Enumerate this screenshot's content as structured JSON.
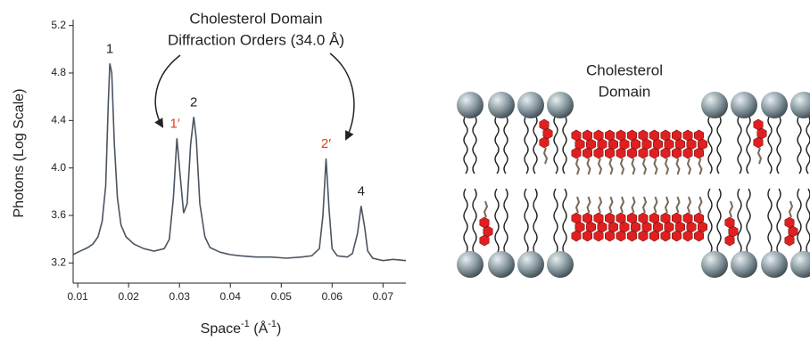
{
  "chart_data": {
    "type": "line",
    "ylabel": "Photons (Log Scale)",
    "xlabel": [
      "Space",
      "-1",
      " (Å",
      "-1",
      ")"
    ],
    "annotation": [
      "Cholesterol Domain",
      "Diffraction Orders (34.0 Å)"
    ],
    "x": [
      0.0091,
      0.01,
      0.011,
      0.012,
      0.013,
      0.014,
      0.0148,
      0.0155,
      0.016,
      0.0163,
      0.0167,
      0.0172,
      0.0178,
      0.0185,
      0.0195,
      0.021,
      0.023,
      0.025,
      0.027,
      0.028,
      0.0288,
      0.0295,
      0.0301,
      0.0308,
      0.0315,
      0.0322,
      0.0328,
      0.0333,
      0.034,
      0.035,
      0.036,
      0.038,
      0.04,
      0.042,
      0.045,
      0.048,
      0.051,
      0.054,
      0.056,
      0.0575,
      0.0582,
      0.0588,
      0.0594,
      0.06,
      0.061,
      0.063,
      0.064,
      0.065,
      0.0657,
      0.0664,
      0.067,
      0.068,
      0.07,
      0.072,
      0.0745
    ],
    "series": [
      {
        "color": "#4a5560",
        "values": [
          3.27,
          3.29,
          3.31,
          3.33,
          3.36,
          3.42,
          3.55,
          3.85,
          4.55,
          4.88,
          4.8,
          4.2,
          3.75,
          3.52,
          3.42,
          3.36,
          3.32,
          3.3,
          3.32,
          3.4,
          3.75,
          4.25,
          3.95,
          3.62,
          3.7,
          4.2,
          4.43,
          4.25,
          3.7,
          3.42,
          3.33,
          3.29,
          3.27,
          3.26,
          3.25,
          3.25,
          3.24,
          3.25,
          3.26,
          3.32,
          3.6,
          4.08,
          3.65,
          3.32,
          3.26,
          3.25,
          3.28,
          3.45,
          3.68,
          3.5,
          3.3,
          3.24,
          3.22,
          3.23,
          3.22
        ]
      }
    ],
    "peaks": [
      {
        "text": "1",
        "x": 0.0163,
        "y": 4.88,
        "color": "#222222"
      },
      {
        "text": "1′",
        "x": 0.0291,
        "y": 4.25,
        "color": "#e0401a"
      },
      {
        "text": "2",
        "x": 0.0328,
        "y": 4.43,
        "color": "#222222"
      },
      {
        "text": "2′",
        "x": 0.0588,
        "y": 4.08,
        "color": "#e0401a"
      },
      {
        "text": "4",
        "x": 0.0657,
        "y": 3.68,
        "color": "#222222"
      }
    ],
    "xlim": [
      0.0091,
      0.0745
    ],
    "ylim": [
      3.03,
      5.25
    ],
    "xticks": [
      0.01,
      0.02,
      0.03,
      0.04,
      0.05,
      0.06,
      0.07
    ],
    "yticks": [
      3.2,
      3.6,
      {
        "value": 4,
        "label": "4.0"
      },
      4.4,
      4.8,
      5.2
    ]
  },
  "diagram": {
    "label": [
      "Cholesterol",
      "Domain"
    ]
  }
}
